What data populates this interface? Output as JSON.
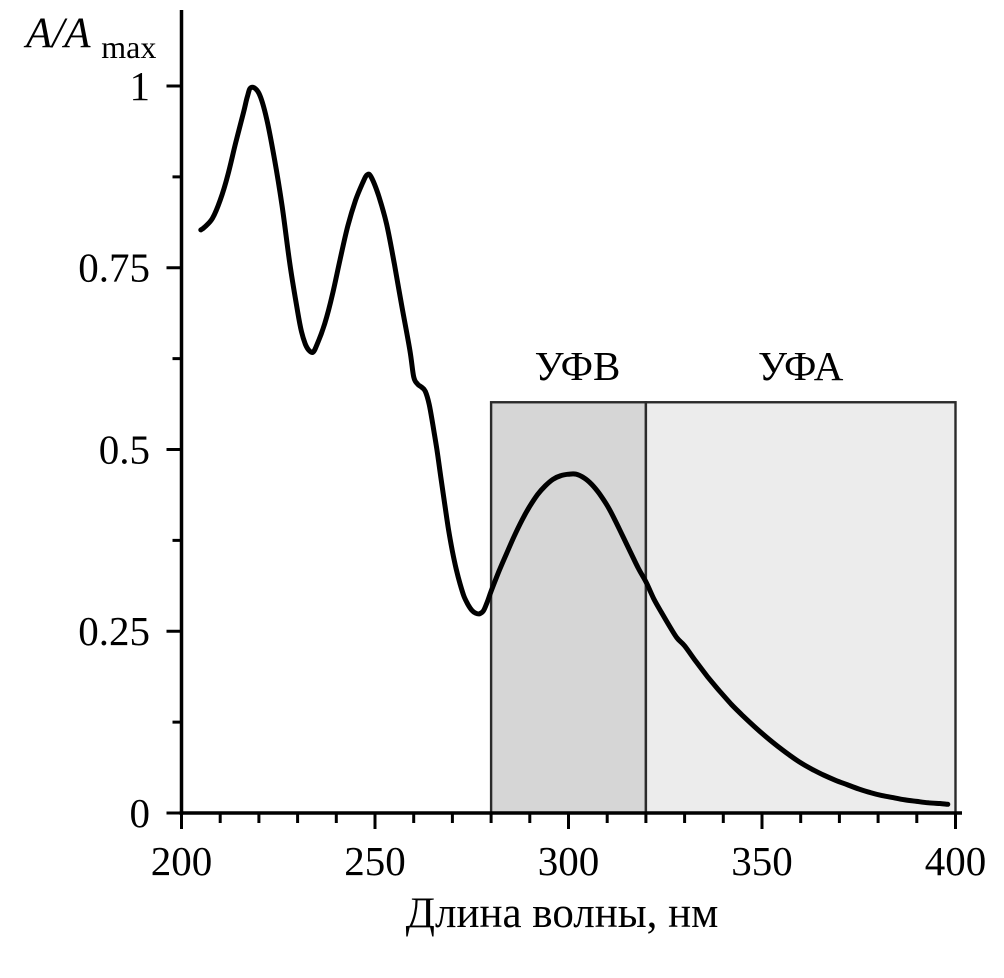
{
  "figure": {
    "background": "#ffffff",
    "text_color": "#000000"
  },
  "chart_data": {
    "type": "line",
    "title": "",
    "xlabel": "Длина волны, нм",
    "ylabel_main": "A/A",
    "ylabel_sub": "max",
    "xlim": [
      200,
      400
    ],
    "ylim": [
      0,
      1
    ],
    "grid": false,
    "legend": null,
    "x_major_ticks": [
      200,
      250,
      300,
      350,
      400
    ],
    "x_major_tick_labels": [
      "200",
      "250",
      "300",
      "350",
      "400"
    ],
    "x_minor_tick_step": 10,
    "y_major_ticks": [
      0,
      0.25,
      0.5,
      0.75,
      1
    ],
    "y_major_tick_labels": [
      "0",
      "0.25",
      "0.5",
      "0.75",
      "1"
    ],
    "y_minor_ticks": [
      0.125,
      0.375,
      0.625,
      0.875
    ],
    "line_color": "#000000",
    "line_width": 5,
    "axis_color": "#000000",
    "regions": [
      {
        "label": "УФВ",
        "from": 280,
        "to": 320,
        "top": 0.565,
        "fill": "#d6d6d6",
        "border": "#2b2b2b"
      },
      {
        "label": "УФА",
        "from": 320,
        "to": 400,
        "top": 0.565,
        "fill": "#ececec",
        "border": "#2b2b2b"
      }
    ],
    "series": [
      {
        "name": "A/Amax",
        "x": [
          205,
          206,
          208,
          210,
          212,
          214,
          216,
          217,
          218,
          220,
          222,
          224,
          226,
          228,
          230,
          231,
          232,
          233,
          234,
          235,
          237,
          239,
          241,
          243,
          245,
          247,
          248,
          249,
          251,
          253,
          255,
          257,
          259,
          260,
          261,
          262,
          263,
          264,
          265,
          266,
          267,
          268,
          269,
          270,
          271,
          272,
          273,
          274,
          275,
          276,
          277,
          278,
          279,
          280,
          282,
          284,
          286,
          288,
          290,
          292,
          294,
          296,
          298,
          300,
          302,
          304,
          306,
          308,
          310,
          312,
          314,
          316,
          318,
          320,
          322,
          324,
          326,
          328,
          330,
          333,
          336,
          339,
          342,
          345,
          348,
          351,
          354,
          357,
          360,
          363,
          366,
          369,
          372,
          375,
          378,
          381,
          384,
          387,
          390,
          393,
          396,
          398
        ],
        "y": [
          0.802,
          0.806,
          0.818,
          0.843,
          0.878,
          0.922,
          0.963,
          0.985,
          0.998,
          0.99,
          0.955,
          0.9,
          0.835,
          0.755,
          0.69,
          0.662,
          0.645,
          0.636,
          0.634,
          0.644,
          0.673,
          0.713,
          0.762,
          0.808,
          0.843,
          0.869,
          0.878,
          0.875,
          0.848,
          0.81,
          0.755,
          0.695,
          0.637,
          0.6,
          0.59,
          0.586,
          0.58,
          0.562,
          0.532,
          0.5,
          0.462,
          0.425,
          0.39,
          0.36,
          0.335,
          0.315,
          0.298,
          0.287,
          0.279,
          0.275,
          0.274,
          0.278,
          0.29,
          0.305,
          0.332,
          0.357,
          0.381,
          0.403,
          0.422,
          0.438,
          0.45,
          0.459,
          0.464,
          0.466,
          0.466,
          0.461,
          0.452,
          0.439,
          0.423,
          0.403,
          0.381,
          0.359,
          0.337,
          0.318,
          0.295,
          0.276,
          0.258,
          0.241,
          0.23,
          0.208,
          0.187,
          0.168,
          0.15,
          0.134,
          0.119,
          0.105,
          0.092,
          0.08,
          0.069,
          0.06,
          0.052,
          0.045,
          0.039,
          0.033,
          0.028,
          0.024,
          0.021,
          0.018,
          0.016,
          0.014,
          0.013,
          0.012
        ]
      }
    ]
  }
}
